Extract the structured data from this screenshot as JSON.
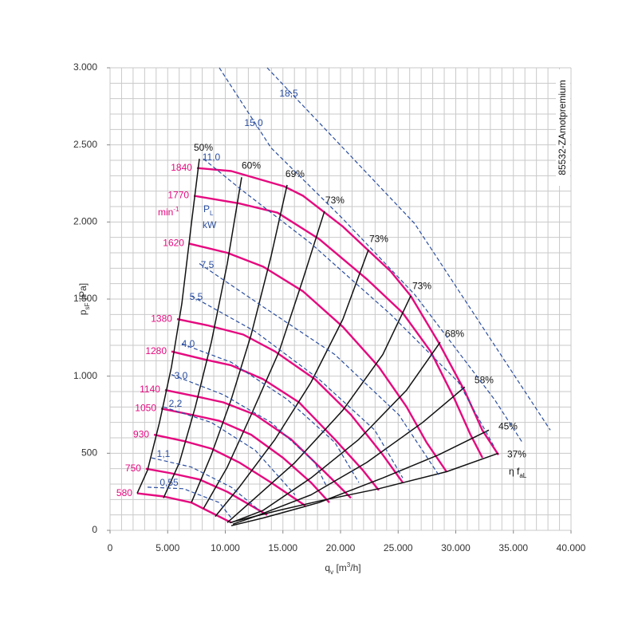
{
  "chart_data": {
    "type": "line",
    "code": "85532-ZAmotpremium",
    "x_label": [
      {
        "text": "q"
      },
      {
        "text": "v",
        "shift": "sub"
      },
      {
        "text": " [m"
      },
      {
        "text": "3",
        "shift": "super"
      },
      {
        "text": "/h]"
      }
    ],
    "y_label": [
      {
        "text": "p"
      },
      {
        "text": "sF",
        "shift": "sub"
      },
      {
        "text": " [Pa]"
      }
    ],
    "speed_unit": [
      {
        "text": "min"
      },
      {
        "text": "-1",
        "shift": "super"
      }
    ],
    "power_symbol": [
      {
        "text": "P"
      },
      {
        "text": "L",
        "shift": "sub"
      }
    ],
    "power_unit": "kW",
    "efficiency_symbol": [
      {
        "text": "η f"
      },
      {
        "text": "aL",
        "shift": "sub"
      }
    ],
    "xlim": [
      0,
      40000
    ],
    "ylim": [
      0,
      3000
    ],
    "xticks": [
      0,
      {
        "value": 5000,
        "label": "5.000"
      },
      {
        "value": 10000,
        "label": "10.000"
      },
      {
        "value": 15000,
        "label": "15.000"
      },
      {
        "value": 20000,
        "label": "20.000"
      },
      {
        "value": 25000,
        "label": "25.000"
      },
      {
        "value": 30000,
        "label": "30.000"
      },
      {
        "value": 35000,
        "label": "35.000"
      },
      {
        "value": 40000,
        "label": "40.000"
      }
    ],
    "yticks": [
      0,
      500,
      {
        "value": 1000,
        "label": "1.000"
      },
      {
        "value": 1500,
        "label": "1.500"
      },
      {
        "value": 2000,
        "label": "2.000"
      },
      {
        "value": 2500,
        "label": "2.500"
      },
      {
        "value": 3000,
        "label": "3.000"
      }
    ],
    "grid": true,
    "xgrid": [
      0,
      1000,
      2000,
      3000,
      4000,
      5000,
      6000,
      7000,
      8000,
      9000,
      10000,
      11000,
      12000,
      13000,
      14000,
      15000,
      16000,
      17000,
      18000,
      19000,
      20000,
      21000,
      22000,
      23000,
      24000,
      25000,
      26000,
      27000,
      28000,
      29000,
      30000,
      31000,
      32000,
      33000,
      34000,
      35000,
      36000,
      37000,
      38000,
      39000,
      40000
    ],
    "ygrid": [
      0,
      100,
      200,
      300,
      400,
      500,
      600,
      700,
      800,
      900,
      1000,
      1100,
      1200,
      1300,
      1400,
      1500,
      1600,
      1700,
      1800,
      1900,
      2000,
      2100,
      2200,
      2300,
      2400,
      2500,
      2600,
      2700,
      2800,
      2900,
      3000
    ],
    "series": [
      {
        "name": "1840",
        "group": "speed",
        "color": "#e5097f",
        "x": [
          7540,
          10520,
          15150,
          16750,
          20200,
          24350,
          26100,
          28500,
          30800,
          32300,
          33700
        ],
        "values": [
          2350,
          2330,
          2230,
          2170,
          1970,
          1680,
          1520,
          1220,
          900,
          650,
          490
        ]
      },
      {
        "name": "1770",
        "group": "speed",
        "color": "#e5097f",
        "x": [
          7270,
          11210,
          14530,
          18130,
          22280,
          25400,
          27820,
          29900,
          31280,
          32320
        ],
        "values": [
          2170,
          2120,
          2060,
          1890,
          1630,
          1410,
          1160,
          850,
          620,
          470
        ]
      },
      {
        "name": "1620",
        "group": "speed",
        "color": "#e5097f",
        "x": [
          6850,
          10170,
          13290,
          16750,
          20200,
          23320,
          25740,
          27470,
          29200
        ],
        "values": [
          1860,
          1800,
          1710,
          1550,
          1320,
          1060,
          800,
          570,
          380
        ]
      },
      {
        "name": "1380",
        "group": "speed",
        "color": "#e5097f",
        "x": [
          5810,
          8440,
          11560,
          14320,
          17780,
          20900,
          23670,
          25400
        ],
        "values": [
          1370,
          1330,
          1270,
          1160,
          980,
          750,
          490,
          310
        ]
      },
      {
        "name": "1280",
        "group": "speed",
        "color": "#e5097f",
        "x": [
          5330,
          8100,
          10520,
          13290,
          16400,
          19510,
          21940,
          23320
        ],
        "values": [
          1160,
          1110,
          1070,
          980,
          830,
          590,
          390,
          260
        ]
      },
      {
        "name": "1140",
        "group": "speed",
        "color": "#e5097f",
        "x": [
          4770,
          7400,
          9830,
          12590,
          15710,
          18480,
          20900
        ],
        "values": [
          910,
          870,
          830,
          750,
          590,
          390,
          210
        ]
      },
      {
        "name": "1050",
        "group": "speed",
        "color": "#e5097f",
        "x": [
          4430,
          7060,
          9480,
          12250,
          15020,
          17440,
          19030
        ],
        "values": [
          790,
          750,
          710,
          620,
          470,
          310,
          180
        ]
      },
      {
        "name": "930",
        "group": "speed",
        "color": "#e5097f",
        "x": [
          3810,
          6370,
          8790,
          11210,
          13980,
          16950
        ],
        "values": [
          620,
          580,
          530,
          440,
          310,
          160
        ]
      },
      {
        "name": "750",
        "group": "speed",
        "color": "#e5097f",
        "x": [
          3110,
          5330,
          7750,
          10170,
          13630
        ],
        "values": [
          400,
          370,
          330,
          250,
          100
        ]
      },
      {
        "name": "580",
        "group": "speed",
        "color": "#e5097f",
        "x": [
          2350,
          4640,
          7060,
          10520
        ],
        "values": [
          240,
          220,
          180,
          50
        ]
      },
      {
        "name": "50%",
        "group": "efficiency",
        "color": "#111111",
        "x": [
          7750,
          7060,
          6230,
          5330,
          4290,
          3250,
          2350
        ],
        "values": [
          2410,
          1990,
          1470,
          1060,
          700,
          390,
          240
        ]
      },
      {
        "name": "60%",
        "group": "efficiency",
        "color": "#111111",
        "x": [
          11420,
          10170,
          8790,
          7400,
          6020,
          4640
        ],
        "values": [
          2290,
          1730,
          1220,
          800,
          440,
          210
        ]
      },
      {
        "name": "69%",
        "group": "efficiency",
        "color": "#111111",
        "x": [
          15360,
          13980,
          12250,
          10520,
          8790,
          7060
        ],
        "values": [
          2240,
          1780,
          1270,
          850,
          490,
          180
        ]
      },
      {
        "name": "73%",
        "group": "efficiency",
        "color": "#111111",
        "x": [
          18610,
          16750,
          14670,
          12250,
          10170,
          8100
        ],
        "values": [
          2070,
          1630,
          1160,
          750,
          410,
          140
        ]
      },
      {
        "name": "73%",
        "group": "efficiency",
        "color": "#111111",
        "x": [
          22420,
          20210,
          17440,
          14320,
          11210,
          9130
        ],
        "values": [
          1820,
          1370,
          960,
          590,
          280,
          90
        ]
      },
      {
        "name": "73%",
        "group": "efficiency",
        "color": "#111111",
        "x": [
          26090,
          23670,
          20210,
          16050,
          12590,
          10170
        ],
        "values": [
          1520,
          1140,
          780,
          440,
          210,
          50
        ]
      },
      {
        "name": "68%",
        "group": "efficiency",
        "color": "#111111",
        "x": [
          28650,
          25740,
          21590,
          17440,
          13290,
          10520
        ],
        "values": [
          1220,
          910,
          590,
          340,
          130,
          50
        ]
      },
      {
        "name": "58%",
        "group": "efficiency",
        "color": "#111111",
        "x": [
          30790,
          27130,
          22280,
          17440,
          12590,
          10660
        ],
        "values": [
          930,
          700,
          440,
          230,
          90,
          40
        ]
      },
      {
        "name": "45%",
        "group": "efficiency",
        "color": "#111111",
        "x": [
          32870,
          28510,
          23670,
          18130,
          13290,
          10520
        ],
        "values": [
          650,
          490,
          340,
          180,
          80,
          30
        ]
      },
      {
        "name": "37%",
        "group": "efficiency",
        "color": "#111111",
        "x": [
          33700,
          29200,
          23320,
          18130,
          14670,
          10380
        ],
        "values": [
          500,
          380,
          270,
          190,
          130,
          50
        ]
      },
      {
        "name": "18,5",
        "group": "power",
        "color": "#2a4ea0",
        "x": [
          13630,
          26430,
          38200
        ],
        "values": [
          3000,
          1990,
          650
        ]
      },
      {
        "name": "15,0",
        "group": "power",
        "color": "#2a4ea0",
        "x": [
          9480,
          13980,
          20210,
          26430,
          33350,
          35780
        ],
        "values": [
          3000,
          2480,
          2020,
          1530,
          850,
          570
        ]
      },
      {
        "name": "11,0",
        "group": "power",
        "color": "#2a4ea0",
        "x": [
          8100,
          11210,
          17440,
          24360,
          30240,
          33350
        ],
        "values": [
          2410,
          2220,
          1860,
          1400,
          960,
          540
        ]
      },
      {
        "name": "7,5",
        "group": "power",
        "color": "#2a4ea0",
        "x": [
          7750,
          13290,
          19510,
          25050,
          28510
        ],
        "values": [
          1730,
          1450,
          1140,
          750,
          360
        ]
      },
      {
        "name": "5,5",
        "group": "power",
        "color": "#2a4ea0",
        "x": [
          7060,
          12590,
          18130,
          22970,
          25400
        ],
        "values": [
          1520,
          1290,
          980,
          650,
          340
        ]
      },
      {
        "name": "4,0",
        "group": "power",
        "color": "#2a4ea0",
        "x": [
          6230,
          10520,
          15360,
          19510,
          21590
        ],
        "values": [
          1210,
          1090,
          850,
          570,
          310
        ]
      },
      {
        "name": "3,0",
        "group": "power",
        "color": "#2a4ea0",
        "x": [
          5330,
          9830,
          13980,
          17780,
          18820
        ],
        "values": [
          1010,
          880,
          700,
          440,
          280
        ]
      },
      {
        "name": "2,2",
        "group": "power",
        "color": "#2a4ea0",
        "x": [
          4640,
          8790,
          12590,
          16050
        ],
        "values": [
          800,
          700,
          520,
          230
        ]
      },
      {
        "name": "1,1",
        "group": "power",
        "color": "#2a4ea0",
        "x": [
          3600,
          7060,
          10520,
          12940
        ],
        "values": [
          470,
          410,
          280,
          130
        ]
      },
      {
        "name": "0,55",
        "group": "power",
        "color": "#2a4ea0",
        "x": [
          3250,
          6370,
          9480,
          10520
        ],
        "values": [
          280,
          270,
          180,
          80
        ]
      }
    ]
  }
}
